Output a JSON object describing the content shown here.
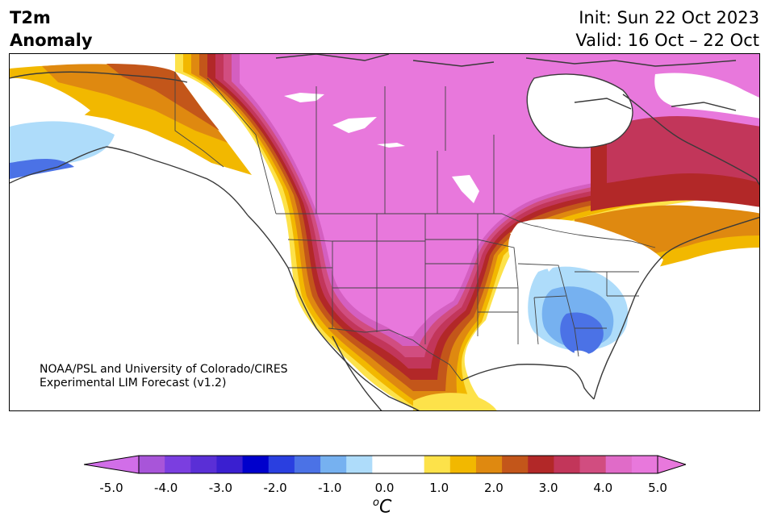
{
  "title": {
    "variable": "T2m",
    "subtitle": "Anomaly",
    "init": "Init: Sun 22 Oct 2023",
    "valid": "Valid: 16 Oct – 22 Oct"
  },
  "credit": {
    "line1": "NOAA/PSL and University of Colorado/CIRES",
    "line2": "Experimental LIM Forecast (v1.2)"
  },
  "colorbar": {
    "unit": "C",
    "unit_prefix": "o",
    "ticks": [
      "-5.0",
      "-4.0",
      "-3.0",
      "-2.0",
      "-1.0",
      "0.0",
      "1.0",
      "2.0",
      "3.0",
      "4.0",
      "5.0"
    ],
    "colors": [
      "#a855d9",
      "#7b3ee0",
      "#5a2fd6",
      "#3a1fd0",
      "#0000cc",
      "#2a3fe0",
      "#4b72e6",
      "#76b1f0",
      "#aedcfa",
      "#ffffff",
      "#ffffff",
      "#fde24a",
      "#f2b800",
      "#df8910",
      "#c3561a",
      "#b22828",
      "#c2365a",
      "#d14d80",
      "#e06bc8",
      "#e878dc"
    ],
    "over_color": "#e878dc",
    "under_color": "#d16ee8"
  },
  "map": {
    "region": "North America",
    "anomaly_colors": {
      "warm5": "#e878dc",
      "warm45": "#d45fc0",
      "warm4": "#d14d80",
      "warm35": "#c2365a",
      "warm3": "#b22828",
      "warm25": "#c3561a",
      "warm2": "#df8910",
      "warm15": "#f2b800",
      "warm1": "#fde24a",
      "cool1": "#aedcfa",
      "cool15": "#76b1f0",
      "cool2": "#4b72e6"
    }
  }
}
